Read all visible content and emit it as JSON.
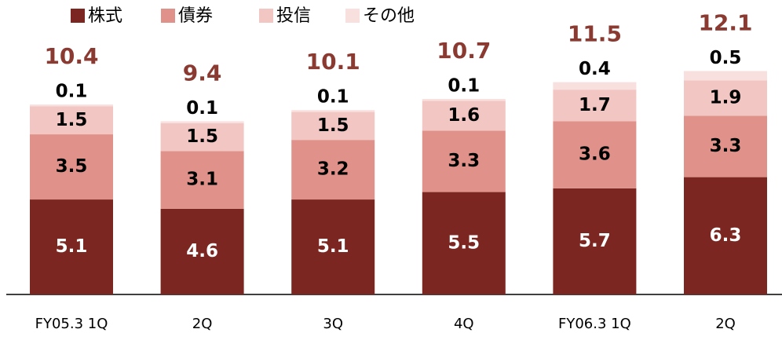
{
  "chart_data": {
    "type": "stacked_bar",
    "categories": [
      "FY05.3 1Q",
      "2Q",
      "3Q",
      "4Q",
      "FY06.3 1Q",
      "2Q"
    ],
    "series": [
      {
        "name": "株式",
        "color": "#7b2620",
        "values": [
          5.1,
          4.6,
          5.1,
          5.5,
          5.7,
          6.3
        ]
      },
      {
        "name": "債券",
        "color": "#e0928a",
        "values": [
          3.5,
          3.1,
          3.2,
          3.3,
          3.6,
          3.3
        ]
      },
      {
        "name": "投信",
        "color": "#f2c6c3",
        "values": [
          1.5,
          1.5,
          1.5,
          1.6,
          1.7,
          1.9
        ]
      },
      {
        "name": "その他",
        "color": "#f8e0df",
        "values": [
          0.1,
          0.1,
          0.1,
          0.1,
          0.4,
          0.5
        ]
      }
    ],
    "totals": [
      10.4,
      9.4,
      10.1,
      10.7,
      11.5,
      12.1
    ],
    "totals_color": "#8b3a32",
    "ylim": [
      0,
      14
    ]
  }
}
